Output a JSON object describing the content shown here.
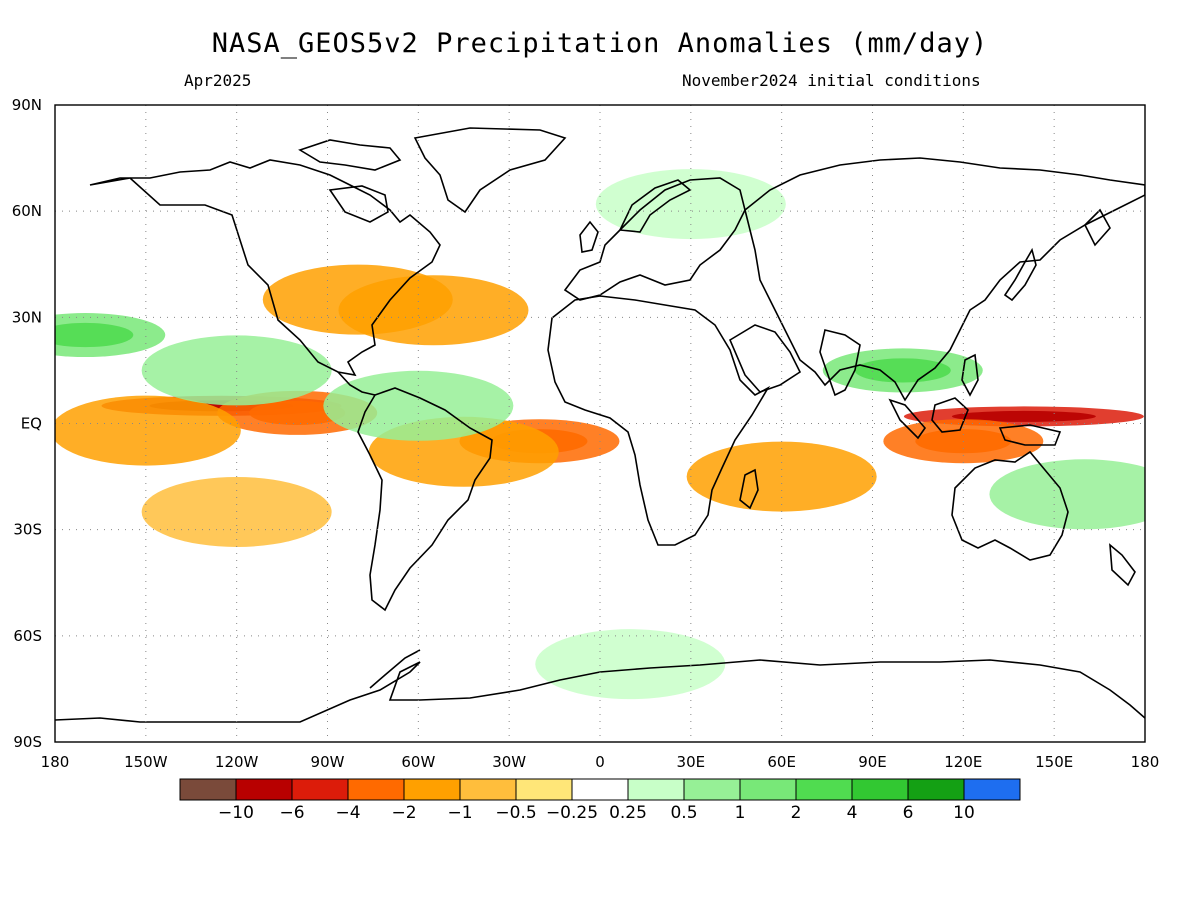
{
  "header": {
    "title": "NASA_GEOS5v2 Precipitation Anomalies (mm/day)",
    "subtitle_left": "Apr2025",
    "subtitle_right": "November2024 initial conditions"
  },
  "axes": {
    "lat_labels": [
      "90N",
      "60N",
      "30N",
      "EQ",
      "30S",
      "60S",
      "90S"
    ],
    "lat_values": [
      90,
      60,
      30,
      0,
      -30,
      -60,
      -90
    ],
    "lon_labels": [
      "180",
      "150W",
      "120W",
      "90W",
      "60W",
      "30W",
      "0",
      "30E",
      "60E",
      "90E",
      "120E",
      "150E",
      "180"
    ],
    "lon_values": [
      -180,
      -150,
      -120,
      -90,
      -60,
      -30,
      0,
      30,
      60,
      90,
      120,
      150,
      180
    ]
  },
  "colorbar": {
    "labels": [
      "−10",
      "−6",
      "−4",
      "−2",
      "−1",
      "−0.5",
      "−0.25",
      "0.25",
      "0.5",
      "1",
      "2",
      "4",
      "6",
      "10"
    ],
    "colors": [
      "#7a4a3a",
      "#b80000",
      "#dc1c0a",
      "#ff6a00",
      "#ffa000",
      "#ffbe3c",
      "#ffe678",
      "#ffffff",
      "#c8ffc8",
      "#96f096",
      "#78e878",
      "#50dc50",
      "#32c832",
      "#14a014",
      "#1e6ef0"
    ]
  },
  "chart_data": {
    "type": "heatmap",
    "title": "NASA_GEOS5v2 Precipitation Anomalies (mm/day)",
    "lon_range": [
      -180,
      180
    ],
    "lat_range": [
      -90,
      90
    ],
    "grid": "dotted",
    "units": "mm/day",
    "anomaly_regions": [
      {
        "lon": -125,
        "lat": 5,
        "value": -4
      },
      {
        "lon": -100,
        "lat": 3,
        "value": -2
      },
      {
        "lon": -150,
        "lat": -2,
        "value": -1
      },
      {
        "lon": -20,
        "lat": -5,
        "value": -2
      },
      {
        "lon": -45,
        "lat": -8,
        "value": -1
      },
      {
        "lon": 140,
        "lat": 2,
        "value": -4
      },
      {
        "lon": 120,
        "lat": -5,
        "value": -2
      },
      {
        "lon": -80,
        "lat": 35,
        "value": -1
      },
      {
        "lon": -55,
        "lat": 32,
        "value": -1
      },
      {
        "lon": 60,
        "lat": -15,
        "value": -1
      },
      {
        "lon": -120,
        "lat": -25,
        "value": -0.5
      },
      {
        "lon": -170,
        "lat": 25,
        "value": 2
      },
      {
        "lon": -120,
        "lat": 15,
        "value": 1
      },
      {
        "lon": 100,
        "lat": 15,
        "value": 2
      },
      {
        "lon": -60,
        "lat": 5,
        "value": 1
      },
      {
        "lon": 30,
        "lat": 62,
        "value": 0.5
      },
      {
        "lon": 10,
        "lat": -68,
        "value": 0.5
      },
      {
        "lon": 160,
        "lat": -20,
        "value": 1
      }
    ]
  }
}
